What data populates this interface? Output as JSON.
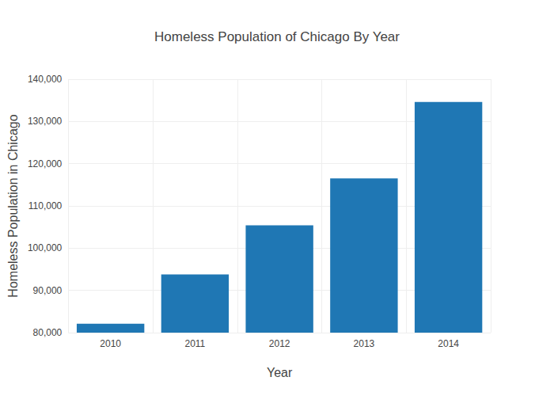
{
  "chart_data": {
    "type": "bar",
    "title": "Homeless Population of Chicago By Year",
    "x_label": "Year",
    "y_label": "Homeless Population in Chicago",
    "categories": [
      "2010",
      "2011",
      "2012",
      "2013",
      "2014"
    ],
    "values": [
      82100,
      93800,
      105400,
      116500,
      134600
    ],
    "color": "#1f77b4",
    "ylim": [
      80000,
      140000
    ],
    "yticks": [
      {
        "value": 80000,
        "label": "80,000"
      },
      {
        "value": 90000,
        "label": "90,000"
      },
      {
        "value": 100000,
        "label": "100,000"
      },
      {
        "value": 110000,
        "label": "110,000"
      },
      {
        "value": 120000,
        "label": "120,000"
      },
      {
        "value": 130000,
        "label": "130,000"
      },
      {
        "value": 140000,
        "label": "140,000"
      }
    ],
    "grid": true
  }
}
